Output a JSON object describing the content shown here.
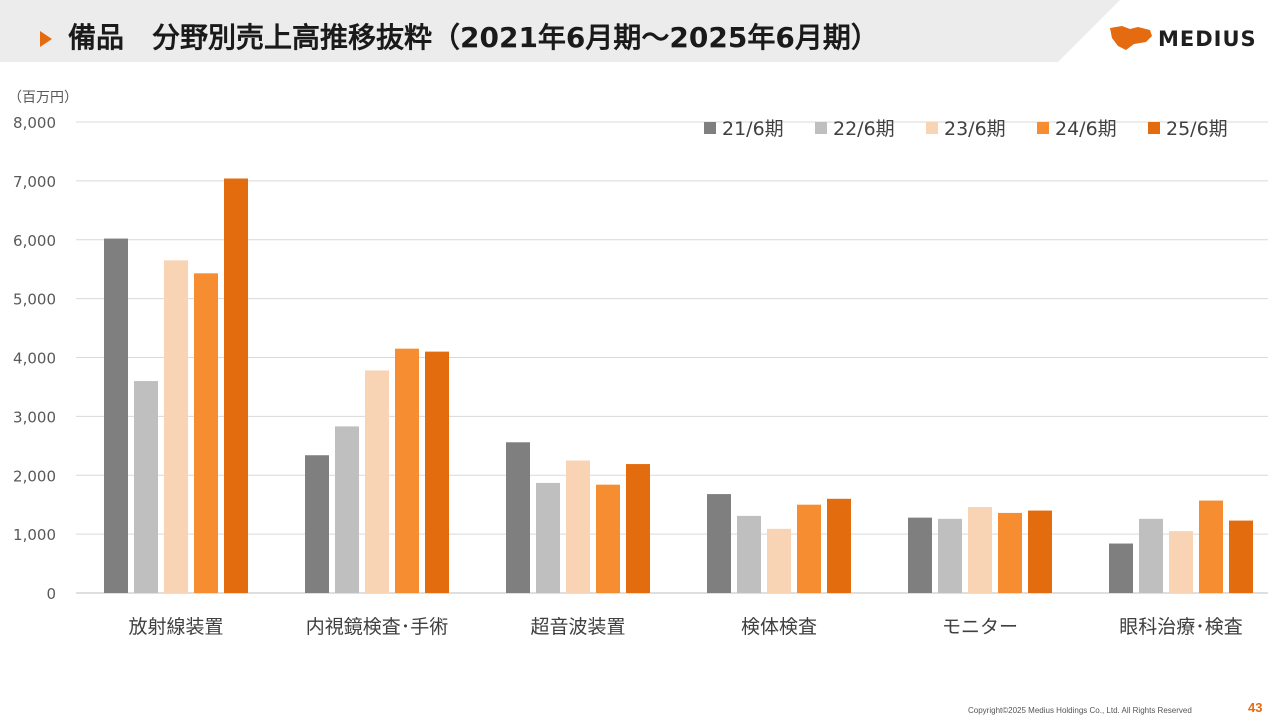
{
  "header": {
    "title": "備品　分野別売上高推移抜粋（2021年6月期～2025年6月期）",
    "accent_color": "#e56b10",
    "band_color": "#ececec",
    "icon": "triangle-right-icon"
  },
  "logo": {
    "text": "MEDIUS",
    "mark_color": "#e56b10",
    "icon": "medius-logo-mark"
  },
  "chart_data": {
    "type": "bar",
    "title": "",
    "unit_label": "（百万円）",
    "xlabel": "",
    "ylabel": "",
    "ylim": [
      0,
      8000
    ],
    "yticks": [
      0,
      1000,
      2000,
      3000,
      4000,
      5000,
      6000,
      7000,
      8000
    ],
    "ytick_labels": [
      "0",
      "1,000",
      "2,000",
      "3,000",
      "4,000",
      "5,000",
      "6,000",
      "7,000",
      "8,000"
    ],
    "grid": true,
    "legend_position": "top-right",
    "categories": [
      "放射線装置",
      "内視鏡検査･手術",
      "超音波装置",
      "検体検査",
      "モニター",
      "眼科治療･検査"
    ],
    "series": [
      {
        "name": "21/6期",
        "color": "#7f7f7f",
        "values": [
          6020,
          2340,
          2560,
          1680,
          1280,
          840
        ]
      },
      {
        "name": "22/6期",
        "color": "#bfbfbf",
        "values": [
          3600,
          2830,
          1870,
          1310,
          1260,
          1260
        ]
      },
      {
        "name": "23/6期",
        "color": "#f8d3b4",
        "values": [
          5650,
          3780,
          2250,
          1090,
          1460,
          1050
        ]
      },
      {
        "name": "24/6期",
        "color": "#f68d30",
        "values": [
          5430,
          4150,
          1840,
          1500,
          1360,
          1570
        ]
      },
      {
        "name": "25/6期",
        "color": "#e36c0e",
        "values": [
          7040,
          4100,
          2190,
          1600,
          1400,
          1230
        ]
      }
    ]
  },
  "footer": {
    "copyright": "Copyright©2025 Medius Holdings Co., Ltd. All Rights Reserved",
    "page_number": "43"
  }
}
